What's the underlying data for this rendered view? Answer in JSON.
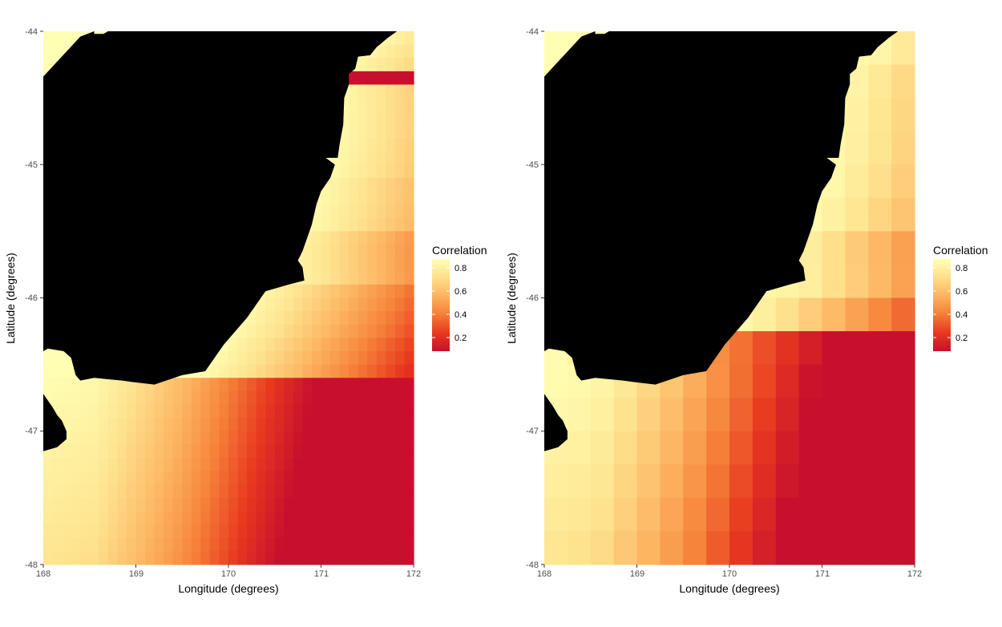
{
  "chart_data": [
    {
      "type": "heatmap",
      "panel": "left",
      "resolution": "fine",
      "xlabel": "Longitude (degrees)",
      "ylabel": "Latitude (degrees)",
      "xlim": [
        168,
        172
      ],
      "ylim": [
        -48,
        -44
      ],
      "x_ticks": [
        "168",
        "169",
        "170",
        "171",
        "172"
      ],
      "y_ticks": [
        "-44",
        "-45",
        "-46",
        "-47",
        "-48"
      ],
      "legend_title": "Correlation",
      "legend_ticks": [
        "0.8",
        "0.6",
        "0.4",
        "0.2"
      ],
      "legend_range": [
        0.08,
        0.87
      ],
      "legend_placement": "right",
      "grid_step_degrees": 0.1,
      "land_color": "#000000",
      "color_scale": [
        "#c8102e",
        "#e8391f",
        "#f6843a",
        "#fdb865",
        "#fee38f",
        "#ffffb3"
      ]
    },
    {
      "type": "heatmap",
      "panel": "right",
      "resolution": "coarse",
      "xlabel": "Longitude (degrees)",
      "ylabel": "Latitude (degrees)",
      "xlim": [
        168,
        172
      ],
      "ylim": [
        -48,
        -44
      ],
      "x_ticks": [
        "168",
        "169",
        "170",
        "171",
        "172"
      ],
      "y_ticks": [
        "-44",
        "-45",
        "-46",
        "-47",
        "-48"
      ],
      "legend_title": "Correlation",
      "legend_ticks": [
        "0.8",
        "0.6",
        "0.4",
        "0.2"
      ],
      "legend_range": [
        0.08,
        0.87
      ],
      "legend_placement": "right",
      "grid_step_degrees": 0.25,
      "land_color": "#000000",
      "color_scale": [
        "#c8102e",
        "#e8391f",
        "#f6843a",
        "#fdb865",
        "#fee38f",
        "#ffffb3"
      ]
    }
  ]
}
